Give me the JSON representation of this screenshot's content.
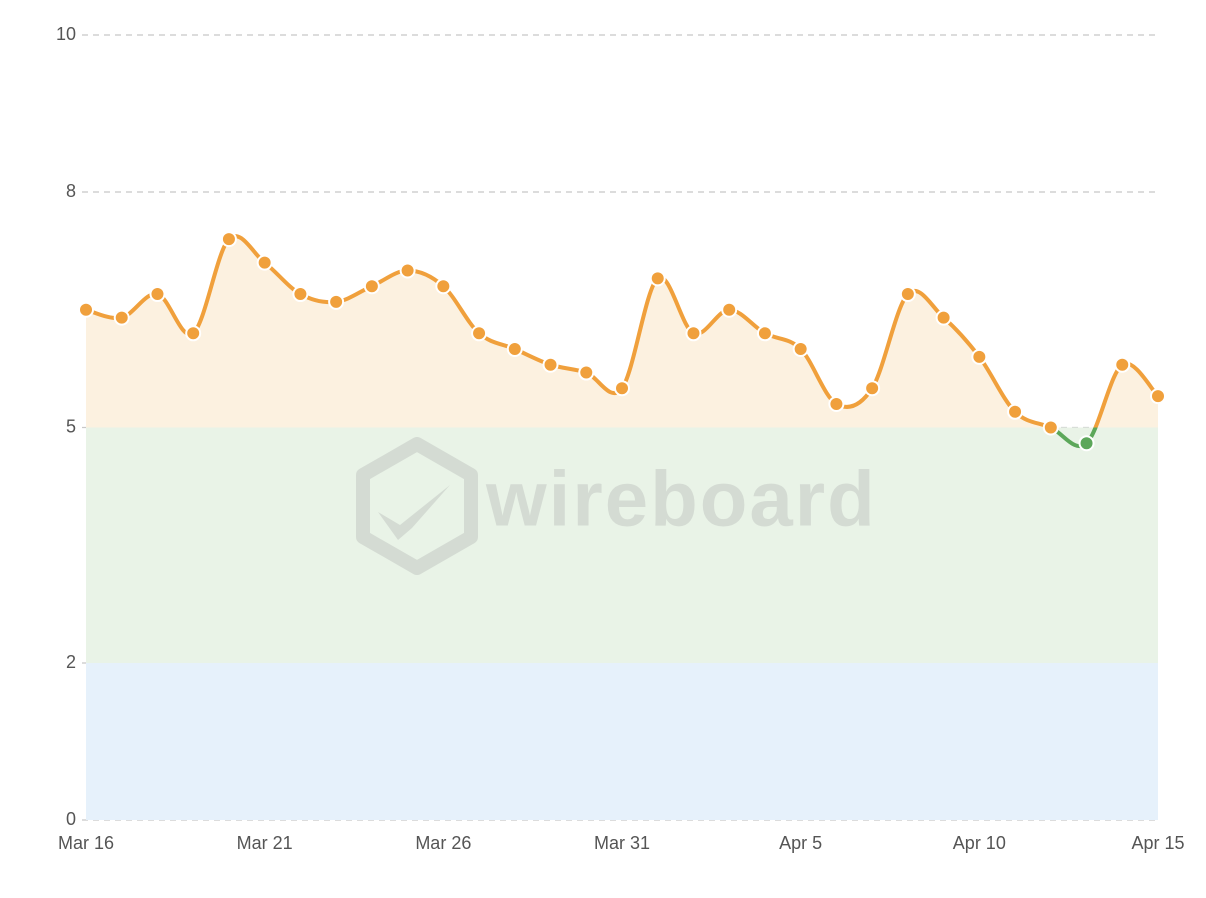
{
  "chart_data": {
    "type": "line",
    "watermark": "wireboard",
    "categories": [
      "Mar 16",
      null,
      null,
      null,
      null,
      "Mar 21",
      null,
      null,
      null,
      null,
      "Mar 26",
      null,
      null,
      null,
      null,
      "Mar 31",
      null,
      null,
      null,
      null,
      "Apr 5",
      null,
      null,
      null,
      null,
      "Apr 10",
      null,
      null,
      null,
      null,
      "Apr 15"
    ],
    "values": [
      6.5,
      6.4,
      6.7,
      6.2,
      7.4,
      7.1,
      6.7,
      6.6,
      6.8,
      7.0,
      6.8,
      6.2,
      6.0,
      5.8,
      5.7,
      5.5,
      6.9,
      6.2,
      6.5,
      6.2,
      6.0,
      5.3,
      5.5,
      6.7,
      6.4,
      5.9,
      5.2,
      5.0,
      4.8,
      5.8,
      5.4
    ],
    "color": "#f0a03c",
    "below_color": "#5ca75a",
    "area_color": "#fcf1e0",
    "threshold": 5,
    "bands": [
      {
        "from": 0,
        "to": 2,
        "color": "#e6f1fb"
      },
      {
        "from": 2,
        "to": 5,
        "color": "#e9f3e7"
      }
    ],
    "ylim": [
      0,
      10
    ],
    "yticks": [
      0,
      2,
      5,
      8,
      10
    ],
    "grid": true
  }
}
